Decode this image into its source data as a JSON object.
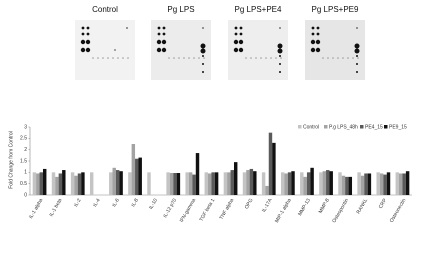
{
  "panels": [
    "Control",
    "Pg LPS",
    "Pg LPS+PE4",
    "Pg LPS+PE9"
  ],
  "chart_data": {
    "type": "bar",
    "y_label": "Fold Change from Control",
    "categories": [
      "IL-1 alpha",
      "IL-1 beta",
      "IL-2",
      "IL-4",
      "IL-6",
      "IL-8",
      "IL-10",
      "IL-12 p70",
      "IFN-gamma",
      "TGF beta 1",
      "TNF alpha",
      "OPG",
      "IL-17A",
      "MIP-1 alpha",
      "MMP-13",
      "MMP-8",
      "Osteopontin",
      "RANKL",
      "CRP",
      "Osteonectin"
    ],
    "series": [
      {
        "name": "Control",
        "color": "#c4c4c4",
        "values": [
          1,
          1,
          1,
          1,
          1,
          1,
          1,
          1,
          1,
          1,
          1,
          1,
          1,
          1,
          1,
          1,
          1,
          1,
          1,
          1
        ]
      },
      {
        "name": "P.g LPS_48h",
        "color": "#a3a3a3",
        "values": [
          0.95,
          0.8,
          0.85,
          null,
          1.2,
          2.25,
          null,
          0.97,
          1.0,
          0.95,
          1.0,
          1.1,
          0.4,
          0.95,
          0.8,
          1.05,
          0.85,
          0.85,
          0.95,
          0.95
        ]
      },
      {
        "name": "PE4_15",
        "color": "#5a5a5a",
        "values": [
          1.0,
          0.95,
          0.95,
          null,
          1.1,
          1.6,
          null,
          0.97,
          0.9,
          1.0,
          1.1,
          1.15,
          2.75,
          1.0,
          1.0,
          1.1,
          0.8,
          0.95,
          0.9,
          0.95
        ]
      },
      {
        "name": "PE9_15",
        "color": "#111111",
        "values": [
          1.15,
          1.1,
          1.0,
          null,
          1.05,
          1.65,
          null,
          0.97,
          1.85,
          1.0,
          1.45,
          1.05,
          2.3,
          1.05,
          1.2,
          1.05,
          0.8,
          0.95,
          1.0,
          1.05
        ]
      }
    ],
    "ylim": [
      0,
      3
    ],
    "yticks": [
      0,
      0.5,
      1,
      1.5,
      2,
      2.5,
      3
    ],
    "grid": false,
    "legend": "top-right"
  }
}
